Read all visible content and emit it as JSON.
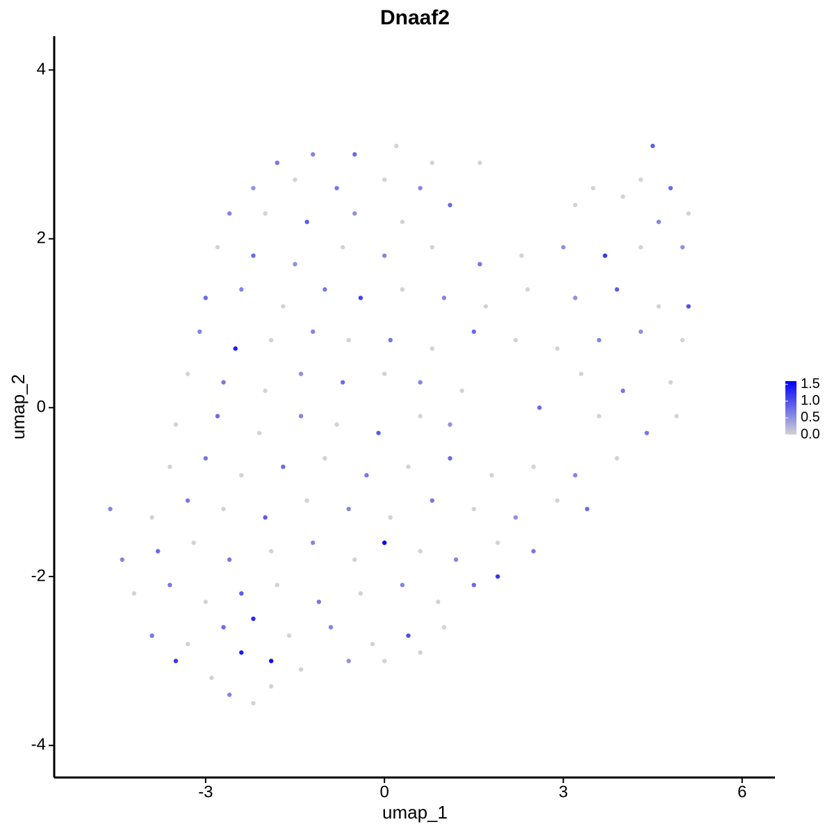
{
  "chart_data": {
    "type": "scatter",
    "title": "Dnaaf2",
    "x_label": "umap_1",
    "y_label": "umap_2",
    "xlim": [
      -5.54,
      6.55
    ],
    "ylim": [
      -4.38,
      4.4
    ],
    "xticks": [
      -3,
      0,
      3,
      6
    ],
    "yticks": [
      -4,
      -2,
      0,
      2,
      4
    ],
    "low_color": "#d3d3d3",
    "high_color": "#0000ff",
    "colorbar_lim": [
      0,
      1.6
    ],
    "colorbar_ticks": [
      {
        "value": 0,
        "label": "0.0"
      },
      {
        "value": 0.5,
        "label": "0.5"
      },
      {
        "value": 1,
        "label": "1.0"
      },
      {
        "value": 1.5,
        "label": "1.5"
      }
    ],
    "x": [
      -1.2,
      -0.5,
      0.2,
      0.8,
      -1.8,
      4.5,
      -2.2,
      -1.5,
      -0.8,
      0,
      0.6,
      1.6,
      4.3,
      4.8,
      3.5,
      -2.6,
      -2,
      -1.3,
      -0.5,
      0.3,
      1.1,
      3.2,
      4.0,
      4.6,
      5.1,
      -2.8,
      -2.2,
      -1.5,
      -0.7,
      0.0,
      0.8,
      1.6,
      2.3,
      3.0,
      3.7,
      4.3,
      5.0,
      -3.0,
      -2.4,
      -1.7,
      -1.0,
      -0.4,
      0.3,
      1.0,
      1.7,
      2.4,
      3.2,
      3.9,
      4.6,
      5.1,
      -3.1,
      -2.5,
      -1.9,
      -1.2,
      -0.6,
      0.1,
      0.8,
      1.5,
      2.2,
      2.9,
      3.6,
      4.3,
      5.0,
      -3.3,
      -2.7,
      -2.0,
      -1.4,
      -0.7,
      0.0,
      0.6,
      1.3,
      3.3,
      4.0,
      4.8,
      -3.5,
      -2.8,
      -2.1,
      -1.4,
      -0.8,
      -0.1,
      0.6,
      1.1,
      2.6,
      3.6,
      4.4,
      4.9,
      -3.6,
      -3.0,
      -2.4,
      -1.7,
      -1.0,
      -0.3,
      0.4,
      1.1,
      1.8,
      2.5,
      3.2,
      3.9,
      -4.6,
      -3.9,
      -3.3,
      -2.7,
      -2.0,
      -1.3,
      -0.6,
      0.1,
      0.8,
      1.5,
      2.2,
      2.9,
      3.4,
      -4.4,
      -3.8,
      -3.2,
      -2.6,
      -1.9,
      -1.2,
      -0.5,
      0.0,
      0.6,
      1.2,
      1.9,
      2.5,
      -4.2,
      -3.6,
      -3.0,
      -2.4,
      -1.8,
      -1.1,
      -0.4,
      0.3,
      0.9,
      1.5,
      1.9,
      -3.9,
      -3.3,
      -2.7,
      -2.2,
      -1.6,
      -0.9,
      -0.2,
      0.4,
      1.0,
      -3.5,
      -2.9,
      -2.4,
      -1.9,
      -1.4,
      -0.6,
      0.0,
      0.6,
      -2.6,
      -2.2,
      -1.9
    ],
    "y": [
      3.0,
      3.0,
      3.1,
      2.9,
      2.9,
      3.1,
      2.6,
      2.7,
      2.6,
      2.7,
      2.6,
      2.9,
      2.7,
      2.6,
      2.6,
      2.3,
      2.3,
      2.2,
      2.3,
      2.2,
      2.4,
      2.4,
      2.5,
      2.2,
      2.3,
      1.9,
      1.8,
      1.7,
      1.9,
      1.8,
      1.9,
      1.7,
      1.8,
      1.9,
      1.8,
      1.9,
      1.9,
      1.3,
      1.4,
      1.2,
      1.4,
      1.3,
      1.4,
      1.3,
      1.2,
      1.4,
      1.3,
      1.4,
      1.2,
      1.2,
      0.9,
      0.7,
      0.8,
      0.9,
      0.8,
      0.8,
      0.7,
      0.9,
      0.8,
      0.7,
      0.8,
      0.9,
      0.8,
      0.4,
      0.3,
      0.2,
      0.4,
      0.3,
      0.4,
      0.3,
      0.2,
      0.4,
      0.2,
      0.3,
      -0.2,
      -0.1,
      -0.3,
      -0.1,
      -0.2,
      -0.3,
      -0.1,
      -0.2,
      0.0,
      -0.1,
      -0.3,
      -0.1,
      -0.7,
      -0.6,
      -0.8,
      -0.7,
      -0.6,
      -0.8,
      -0.7,
      -0.6,
      -0.8,
      -0.7,
      -0.8,
      -0.6,
      -1.2,
      -1.3,
      -1.1,
      -1.2,
      -1.3,
      -1.1,
      -1.2,
      -1.3,
      -1.1,
      -1.2,
      -1.3,
      -1.1,
      -1.2,
      -1.8,
      -1.7,
      -1.6,
      -1.8,
      -1.7,
      -1.6,
      -1.8,
      -1.6,
      -1.7,
      -1.8,
      -1.6,
      -1.7,
      -2.2,
      -2.1,
      -2.3,
      -2.2,
      -2.1,
      -2.3,
      -2.2,
      -2.1,
      -2.3,
      -2.1,
      -2.0,
      -2.7,
      -2.8,
      -2.6,
      -2.5,
      -2.7,
      -2.6,
      -2.8,
      -2.7,
      -2.6,
      -3.0,
      -3.2,
      -2.9,
      -3.0,
      -3.1,
      -3.0,
      -3.0,
      -2.9,
      -3.4,
      -3.5,
      -3.3
    ],
    "values": [
      0.6,
      0.8,
      0,
      0,
      0.7,
      0.9,
      0.5,
      0,
      0.7,
      0,
      0.6,
      0,
      0,
      0.8,
      0,
      0.6,
      0,
      0.9,
      0.5,
      0,
      0.8,
      0,
      0,
      0.6,
      0,
      0,
      0.8,
      0.5,
      0,
      0.6,
      0,
      0.7,
      0,
      0.5,
      1.2,
      0,
      0.5,
      0.8,
      0.6,
      0,
      0.7,
      1.1,
      0,
      0.6,
      0,
      0,
      0.5,
      0.9,
      0,
      1.0,
      0.6,
      1.4,
      0,
      0.6,
      0,
      0.7,
      0,
      0.8,
      0,
      0,
      0.6,
      0.5,
      0,
      0,
      0.7,
      0,
      0.5,
      0.8,
      0,
      0.6,
      0,
      0,
      0.7,
      0,
      0,
      0.8,
      0,
      0.6,
      0,
      0.9,
      0,
      0.5,
      0.8,
      0,
      0.7,
      0,
      0,
      0.7,
      0,
      0.8,
      0,
      0.7,
      0,
      0.8,
      0,
      0,
      0.6,
      0,
      0.6,
      0,
      0.7,
      0,
      0.9,
      0,
      0.6,
      0,
      0.7,
      0,
      0.5,
      0,
      0.8,
      0.6,
      0.8,
      0,
      0.7,
      0,
      0.6,
      0,
      1.6,
      0,
      0.6,
      0,
      0.7,
      0,
      0.7,
      0,
      0.9,
      0,
      0.7,
      0,
      0.6,
      0,
      0.8,
      1.2,
      0.7,
      0,
      0.8,
      1.3,
      0,
      0.6,
      0,
      1.0,
      0,
      1.2,
      0,
      1.4,
      1.5,
      0,
      0.5,
      0,
      0,
      0.6,
      0,
      0
    ]
  }
}
